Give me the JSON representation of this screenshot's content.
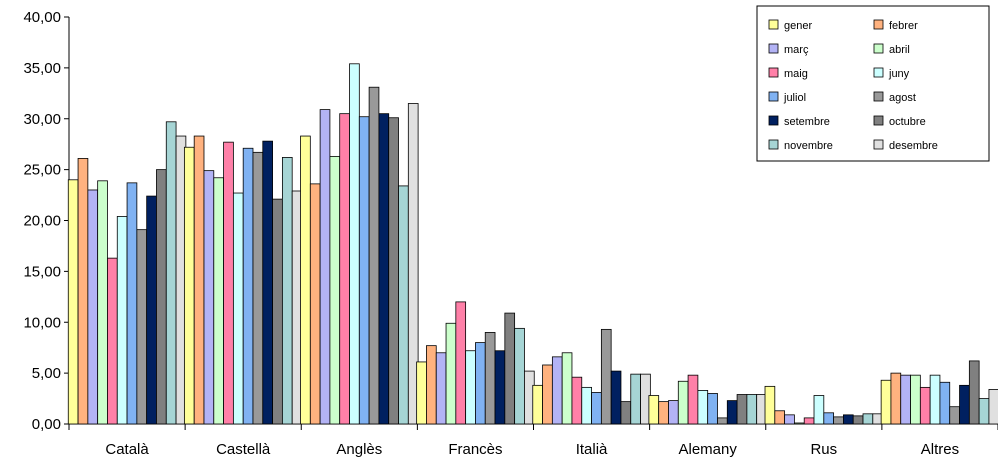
{
  "chart_data": {
    "type": "bar",
    "title": "",
    "xlabel": "",
    "ylabel": "",
    "ylim": [
      0,
      40
    ],
    "y_ticks": [
      "0,00",
      "5,00",
      "10,00",
      "15,00",
      "20,00",
      "25,00",
      "30,00",
      "35,00",
      "40,00"
    ],
    "grid": false,
    "legend_position": "top-right",
    "categories": [
      "Català",
      "Castellà",
      "Anglès",
      "Francès",
      "Italià",
      "Alemany",
      "Rus",
      "Altres"
    ],
    "series": [
      {
        "name": "gener",
        "color": "#ffff99",
        "values": [
          24.0,
          27.2,
          28.3,
          6.1,
          3.8,
          2.8,
          3.7,
          4.3
        ]
      },
      {
        "name": "febrer",
        "color": "#ffb27f",
        "values": [
          26.1,
          28.3,
          23.6,
          7.7,
          5.8,
          2.2,
          1.3,
          5.0
        ]
      },
      {
        "name": "març",
        "color": "#b3b3f5",
        "values": [
          23.0,
          24.9,
          30.9,
          7.0,
          6.6,
          2.3,
          0.9,
          4.8
        ]
      },
      {
        "name": "abril",
        "color": "#ccffcc",
        "values": [
          23.9,
          24.2,
          26.3,
          9.9,
          7.0,
          4.2,
          0.1,
          4.8
        ]
      },
      {
        "name": "maig",
        "color": "#ff80a8",
        "values": [
          16.3,
          27.7,
          30.5,
          12.0,
          4.6,
          4.8,
          0.6,
          3.6
        ]
      },
      {
        "name": "juny",
        "color": "#ccffff",
        "values": [
          20.4,
          22.7,
          35.4,
          7.2,
          3.6,
          3.3,
          2.8,
          4.8
        ]
      },
      {
        "name": "juliol",
        "color": "#80b2f2",
        "values": [
          23.7,
          27.1,
          30.2,
          8.0,
          3.1,
          3.0,
          1.1,
          4.1
        ]
      },
      {
        "name": "agost",
        "color": "#999999",
        "values": [
          19.1,
          26.7,
          33.1,
          9.0,
          9.3,
          0.6,
          0.7,
          1.7
        ]
      },
      {
        "name": "setembre",
        "color": "#002060",
        "values": [
          22.4,
          27.8,
          30.5,
          7.2,
          5.2,
          2.3,
          0.9,
          3.8
        ]
      },
      {
        "name": "octubre",
        "color": "#808080",
        "values": [
          25.0,
          22.1,
          30.1,
          10.9,
          2.2,
          2.9,
          0.8,
          6.2
        ]
      },
      {
        "name": "novembre",
        "color": "#a6d5d5",
        "values": [
          29.7,
          26.2,
          23.4,
          9.4,
          4.9,
          2.9,
          1.0,
          2.5
        ]
      },
      {
        "name": "desembre",
        "color": "#e0e0e0",
        "values": [
          28.3,
          22.9,
          31.5,
          5.2,
          4.9,
          2.9,
          1.0,
          3.4
        ]
      }
    ]
  }
}
